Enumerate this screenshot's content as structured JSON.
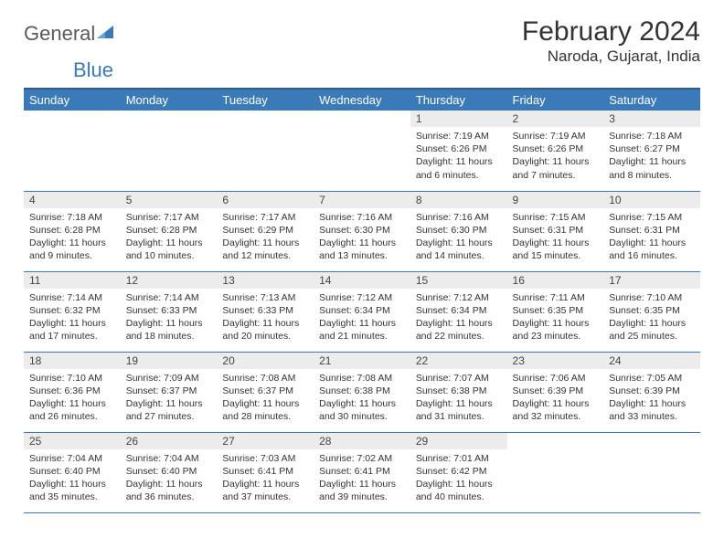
{
  "logo": {
    "general": "General",
    "blue": "Blue"
  },
  "title": "February 2024",
  "location": "Naroda, Gujarat, India",
  "colors": {
    "header_bg": "#3a7ab8",
    "header_border_top": "#305b80",
    "row_border": "#3a7ab8",
    "daynum_bg": "#ececec",
    "text": "#333333",
    "logo_gray": "#5a5a5a",
    "logo_blue": "#3a7ab8"
  },
  "weekdays": [
    "Sunday",
    "Monday",
    "Tuesday",
    "Wednesday",
    "Thursday",
    "Friday",
    "Saturday"
  ],
  "weeks": [
    [
      {
        "blank": true
      },
      {
        "blank": true
      },
      {
        "blank": true
      },
      {
        "blank": true
      },
      {
        "day": "1",
        "sunrise": "Sunrise: 7:19 AM",
        "sunset": "Sunset: 6:26 PM",
        "daylight": "Daylight: 11 hours and 6 minutes."
      },
      {
        "day": "2",
        "sunrise": "Sunrise: 7:19 AM",
        "sunset": "Sunset: 6:26 PM",
        "daylight": "Daylight: 11 hours and 7 minutes."
      },
      {
        "day": "3",
        "sunrise": "Sunrise: 7:18 AM",
        "sunset": "Sunset: 6:27 PM",
        "daylight": "Daylight: 11 hours and 8 minutes."
      }
    ],
    [
      {
        "day": "4",
        "sunrise": "Sunrise: 7:18 AM",
        "sunset": "Sunset: 6:28 PM",
        "daylight": "Daylight: 11 hours and 9 minutes."
      },
      {
        "day": "5",
        "sunrise": "Sunrise: 7:17 AM",
        "sunset": "Sunset: 6:28 PM",
        "daylight": "Daylight: 11 hours and 10 minutes."
      },
      {
        "day": "6",
        "sunrise": "Sunrise: 7:17 AM",
        "sunset": "Sunset: 6:29 PM",
        "daylight": "Daylight: 11 hours and 12 minutes."
      },
      {
        "day": "7",
        "sunrise": "Sunrise: 7:16 AM",
        "sunset": "Sunset: 6:30 PM",
        "daylight": "Daylight: 11 hours and 13 minutes."
      },
      {
        "day": "8",
        "sunrise": "Sunrise: 7:16 AM",
        "sunset": "Sunset: 6:30 PM",
        "daylight": "Daylight: 11 hours and 14 minutes."
      },
      {
        "day": "9",
        "sunrise": "Sunrise: 7:15 AM",
        "sunset": "Sunset: 6:31 PM",
        "daylight": "Daylight: 11 hours and 15 minutes."
      },
      {
        "day": "10",
        "sunrise": "Sunrise: 7:15 AM",
        "sunset": "Sunset: 6:31 PM",
        "daylight": "Daylight: 11 hours and 16 minutes."
      }
    ],
    [
      {
        "day": "11",
        "sunrise": "Sunrise: 7:14 AM",
        "sunset": "Sunset: 6:32 PM",
        "daylight": "Daylight: 11 hours and 17 minutes."
      },
      {
        "day": "12",
        "sunrise": "Sunrise: 7:14 AM",
        "sunset": "Sunset: 6:33 PM",
        "daylight": "Daylight: 11 hours and 18 minutes."
      },
      {
        "day": "13",
        "sunrise": "Sunrise: 7:13 AM",
        "sunset": "Sunset: 6:33 PM",
        "daylight": "Daylight: 11 hours and 20 minutes."
      },
      {
        "day": "14",
        "sunrise": "Sunrise: 7:12 AM",
        "sunset": "Sunset: 6:34 PM",
        "daylight": "Daylight: 11 hours and 21 minutes."
      },
      {
        "day": "15",
        "sunrise": "Sunrise: 7:12 AM",
        "sunset": "Sunset: 6:34 PM",
        "daylight": "Daylight: 11 hours and 22 minutes."
      },
      {
        "day": "16",
        "sunrise": "Sunrise: 7:11 AM",
        "sunset": "Sunset: 6:35 PM",
        "daylight": "Daylight: 11 hours and 23 minutes."
      },
      {
        "day": "17",
        "sunrise": "Sunrise: 7:10 AM",
        "sunset": "Sunset: 6:35 PM",
        "daylight": "Daylight: 11 hours and 25 minutes."
      }
    ],
    [
      {
        "day": "18",
        "sunrise": "Sunrise: 7:10 AM",
        "sunset": "Sunset: 6:36 PM",
        "daylight": "Daylight: 11 hours and 26 minutes."
      },
      {
        "day": "19",
        "sunrise": "Sunrise: 7:09 AM",
        "sunset": "Sunset: 6:37 PM",
        "daylight": "Daylight: 11 hours and 27 minutes."
      },
      {
        "day": "20",
        "sunrise": "Sunrise: 7:08 AM",
        "sunset": "Sunset: 6:37 PM",
        "daylight": "Daylight: 11 hours and 28 minutes."
      },
      {
        "day": "21",
        "sunrise": "Sunrise: 7:08 AM",
        "sunset": "Sunset: 6:38 PM",
        "daylight": "Daylight: 11 hours and 30 minutes."
      },
      {
        "day": "22",
        "sunrise": "Sunrise: 7:07 AM",
        "sunset": "Sunset: 6:38 PM",
        "daylight": "Daylight: 11 hours and 31 minutes."
      },
      {
        "day": "23",
        "sunrise": "Sunrise: 7:06 AM",
        "sunset": "Sunset: 6:39 PM",
        "daylight": "Daylight: 11 hours and 32 minutes."
      },
      {
        "day": "24",
        "sunrise": "Sunrise: 7:05 AM",
        "sunset": "Sunset: 6:39 PM",
        "daylight": "Daylight: 11 hours and 33 minutes."
      }
    ],
    [
      {
        "day": "25",
        "sunrise": "Sunrise: 7:04 AM",
        "sunset": "Sunset: 6:40 PM",
        "daylight": "Daylight: 11 hours and 35 minutes."
      },
      {
        "day": "26",
        "sunrise": "Sunrise: 7:04 AM",
        "sunset": "Sunset: 6:40 PM",
        "daylight": "Daylight: 11 hours and 36 minutes."
      },
      {
        "day": "27",
        "sunrise": "Sunrise: 7:03 AM",
        "sunset": "Sunset: 6:41 PM",
        "daylight": "Daylight: 11 hours and 37 minutes."
      },
      {
        "day": "28",
        "sunrise": "Sunrise: 7:02 AM",
        "sunset": "Sunset: 6:41 PM",
        "daylight": "Daylight: 11 hours and 39 minutes."
      },
      {
        "day": "29",
        "sunrise": "Sunrise: 7:01 AM",
        "sunset": "Sunset: 6:42 PM",
        "daylight": "Daylight: 11 hours and 40 minutes."
      },
      {
        "blank": true
      },
      {
        "blank": true
      }
    ]
  ]
}
